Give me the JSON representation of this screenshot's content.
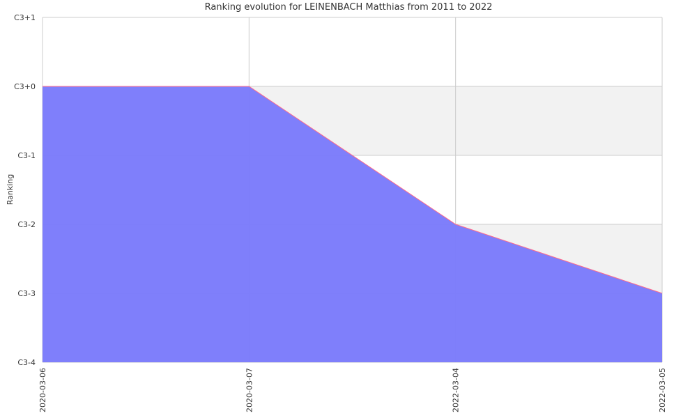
{
  "chart_data": {
    "type": "area",
    "title": "Ranking evolution for LEINENBACH Matthias from 2011 to 2022",
    "xlabel": "",
    "ylabel": "Ranking",
    "x": [
      "2020-03-06",
      "2020-03-07",
      "2022-03-04",
      "2022-03-05"
    ],
    "y_ticks": [
      "C3+1",
      "C3+0",
      "C3-1",
      "C3-2",
      "C3-3",
      "C3-4"
    ],
    "series": [
      {
        "values": [
          "C3+0",
          "C3+0",
          "C3-2",
          "C3-3"
        ]
      }
    ],
    "ylim": [
      "C3-4",
      "C3+1"
    ],
    "grid": true,
    "colors": {
      "fill": "#7b7bfb",
      "line": "#ff6b8b",
      "band": "#f2f2f2",
      "grid": "#cccccc"
    }
  }
}
